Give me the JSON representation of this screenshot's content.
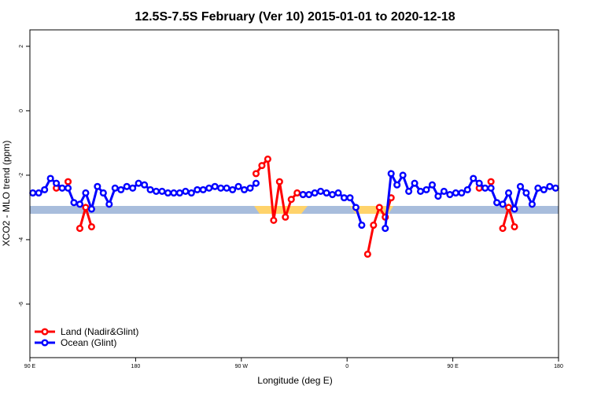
{
  "chart_data": {
    "type": "line",
    "title": "12.5S-7.5S February (Ver 10)   2015-01-01 to 2020-12-18",
    "x_label": "Longitude (deg E)",
    "y_label": "XCO2 - MLO trend (ppm)",
    "xlim": [
      90,
      540
    ],
    "ylim": [
      -7.66,
      2.51
    ],
    "xticks": [
      {
        "value": 90,
        "label": "90 E"
      },
      180,
      {
        "value": 270,
        "label": "90 W"
      },
      {
        "value": 360,
        "label": "0"
      },
      {
        "value": 450,
        "label": "90 E"
      },
      {
        "value": 540,
        "label": "180"
      }
    ],
    "yticks": [
      2,
      0,
      -2,
      -4,
      -6
    ],
    "legend": "bottom-left",
    "x": [
      92.5,
      97.5,
      102.5,
      107.5,
      112.5,
      117.5,
      122.5,
      127.5,
      132.5,
      137.5,
      142.5,
      147.5,
      152.5,
      157.5,
      162.5,
      167.5,
      172.5,
      177.5,
      182.5,
      187.5,
      192.5,
      197.5,
      202.5,
      207.5,
      212.5,
      217.5,
      222.5,
      227.5,
      232.5,
      237.5,
      242.5,
      247.5,
      252.5,
      257.5,
      262.5,
      267.5,
      272.5,
      277.5,
      282.5,
      287.5,
      292.5,
      297.5,
      302.5,
      307.5,
      312.5,
      317.5,
      322.5,
      327.5,
      332.5,
      337.5,
      342.5,
      347.5,
      352.5,
      357.5,
      362.5,
      367.5,
      372.5,
      377.5,
      382.5,
      387.5,
      392.5,
      397.5,
      402.5,
      407.5,
      412.5,
      417.5,
      422.5,
      427.5,
      432.5,
      437.5,
      442.5,
      447.5,
      452.5,
      457.5,
      462.5,
      467.5,
      472.5,
      477.5,
      482.5,
      487.5,
      492.5,
      497.5,
      502.5,
      507.5,
      512.5,
      517.5,
      522.5,
      527.5,
      532.5,
      537.5
    ],
    "series": [
      {
        "name": "Land (Nadir&Glint)",
        "color": "#ff0000",
        "values": [
          null,
          null,
          null,
          null,
          -2.4,
          null,
          -2.2,
          null,
          -3.65,
          -3.0,
          -3.6,
          null,
          null,
          null,
          null,
          null,
          null,
          null,
          null,
          null,
          null,
          null,
          null,
          null,
          null,
          null,
          null,
          null,
          null,
          null,
          null,
          null,
          null,
          null,
          null,
          null,
          null,
          null,
          -1.95,
          -1.7,
          -1.5,
          -3.4,
          -2.2,
          -3.3,
          -2.75,
          -2.55,
          -2.6,
          null,
          null,
          null,
          null,
          null,
          null,
          null,
          null,
          null,
          null,
          -4.45,
          -3.55,
          -3.0,
          -3.3,
          -2.7,
          null,
          null,
          null,
          null,
          null,
          null,
          null,
          null,
          null,
          null,
          null,
          null,
          null,
          null,
          -2.4,
          null,
          -2.2,
          null,
          -3.65,
          -3.0,
          -3.6,
          null,
          null,
          null,
          null,
          null,
          null,
          null
        ]
      },
      {
        "name": "Ocean (Glint)",
        "color": "#0000ff",
        "values": [
          -2.55,
          -2.55,
          -2.45,
          -2.1,
          -2.25,
          -2.4,
          -2.4,
          -2.85,
          -2.9,
          -2.55,
          -3.05,
          -2.35,
          -2.55,
          -2.9,
          -2.4,
          -2.45,
          -2.35,
          -2.4,
          -2.25,
          -2.3,
          -2.45,
          -2.5,
          -2.5,
          -2.55,
          -2.55,
          -2.55,
          -2.5,
          -2.55,
          -2.45,
          -2.45,
          -2.4,
          -2.35,
          -2.4,
          -2.4,
          -2.45,
          -2.35,
          -2.45,
          -2.4,
          -2.25,
          null,
          null,
          null,
          null,
          null,
          null,
          null,
          -2.6,
          -2.6,
          -2.55,
          -2.5,
          -2.55,
          -2.6,
          -2.55,
          -2.7,
          -2.7,
          -3.0,
          -3.55,
          null,
          null,
          null,
          -3.65,
          -1.95,
          -2.3,
          -2.0,
          -2.5,
          -2.25,
          -2.5,
          -2.45,
          -2.3,
          -2.65,
          -2.5,
          -2.6,
          -2.55,
          -2.55,
          -2.45,
          -2.1,
          -2.25,
          -2.4,
          -2.4,
          -2.85,
          -2.9,
          -2.55,
          -3.05,
          -2.35,
          -2.55,
          -2.9,
          -2.4,
          -2.45,
          -2.35,
          -2.4
        ]
      }
    ]
  }
}
